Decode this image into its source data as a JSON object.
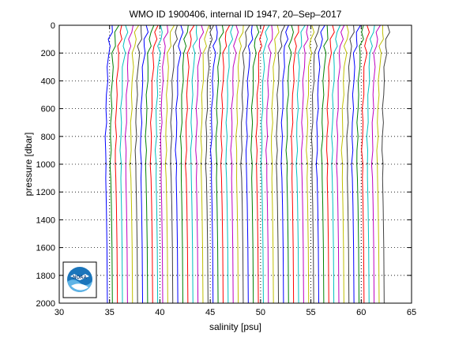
{
  "chart_data": {
    "type": "line",
    "title": "WMO ID 1900406, internal ID 1947, 20–Sep–2017",
    "xlabel": "salinity [psu]",
    "ylabel": "pressure [dbar]",
    "xlim": [
      30,
      65
    ],
    "ylim": [
      0,
      2000
    ],
    "y_reversed": true,
    "xticks": [
      30,
      35,
      40,
      45,
      50,
      55,
      60,
      65
    ],
    "yticks": [
      0,
      200,
      400,
      600,
      800,
      1000,
      1200,
      1400,
      1600,
      1800,
      2000
    ],
    "grid": "dotted",
    "profile_offset_psu": 0.5,
    "deep_start_offsets_psu": [
      34.7,
      35.2,
      35.7,
      36.2,
      36.7,
      37.2,
      37.7,
      38.2,
      38.7,
      39.2,
      39.7,
      40.2,
      40.7,
      41.2,
      41.7,
      42.2,
      42.7,
      43.2,
      43.7,
      44.2,
      44.7,
      45.2,
      45.7,
      46.2,
      46.7,
      47.2,
      47.7,
      48.2,
      48.7,
      49.2,
      49.7,
      50.2,
      50.7,
      51.2,
      51.7,
      52.2,
      52.7,
      53.2,
      53.7,
      54.2,
      54.7,
      55.2,
      55.7,
      56.2,
      56.7,
      57.2,
      57.7,
      58.2,
      58.7,
      59.2,
      59.7,
      60.2,
      60.7,
      61.2,
      61.7,
      62.2
    ],
    "profile_template": {
      "pressure": [
        0,
        50,
        100,
        150,
        200,
        300,
        400,
        500,
        600,
        700,
        800,
        900,
        1000,
        1100,
        1200,
        1300,
        1400,
        1500,
        1600,
        1700,
        1800,
        1900,
        2000
      ],
      "salinity": [
        35.25,
        35.15,
        35.05,
        34.95,
        34.9,
        34.82,
        34.76,
        34.71,
        34.67,
        34.64,
        34.62,
        34.6,
        34.6,
        34.62,
        34.65,
        34.68,
        34.7,
        34.72,
        34.74,
        34.75,
        34.76,
        34.77,
        34.78
      ]
    },
    "profiles": 56,
    "series_colors": [
      "#0000ff",
      "#008000",
      "#ff0000",
      "#00bfbf",
      "#bf00bf",
      "#bfbf00",
      "#404040"
    ],
    "deep_reference_lines_psu": [
      35,
      40,
      50,
      55,
      60
    ],
    "logo": {
      "name": "NOAA",
      "text": "NOAA"
    }
  }
}
